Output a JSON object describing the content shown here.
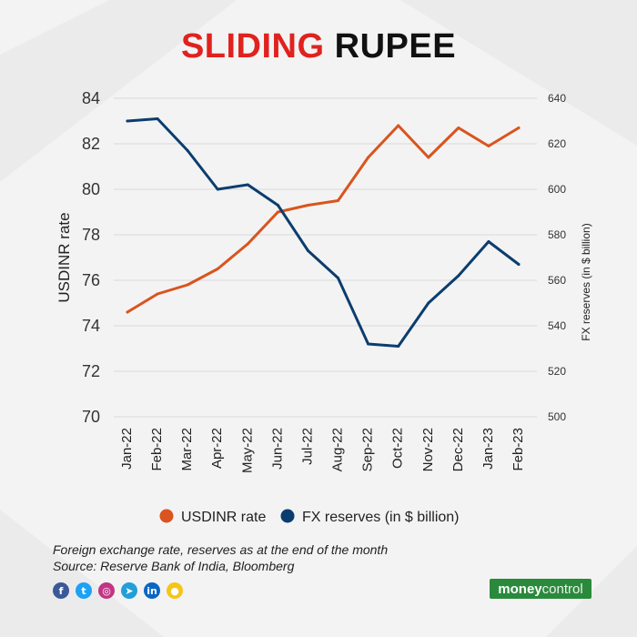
{
  "header": {
    "title_part1": "SLIDING",
    "title_part2": "RUPEE"
  },
  "chart_data": {
    "type": "line",
    "title": "SLIDING RUPEE",
    "categories": [
      "Jan-22",
      "Feb-22",
      "Mar-22",
      "Apr-22",
      "May-22",
      "Jun-22",
      "Jul-22",
      "Aug-22",
      "Sep-22",
      "Oct-22",
      "Nov-22",
      "Dec-22",
      "Jan-23",
      "Feb-23"
    ],
    "series": [
      {
        "name": "USDINR rate",
        "axis": "left",
        "color": "#d9541e",
        "values": [
          74.6,
          75.4,
          75.8,
          76.5,
          77.6,
          79.0,
          79.3,
          79.5,
          81.4,
          82.8,
          81.4,
          82.7,
          81.9,
          82.7
        ]
      },
      {
        "name": "FX reserves (in $ billion)",
        "axis": "right",
        "color": "#0b3d6e",
        "values": [
          630,
          631,
          617,
          600,
          602,
          593,
          573,
          561,
          532,
          531,
          550,
          562,
          577,
          567
        ]
      }
    ],
    "ylabel": "USDINR rate",
    "y2label": "FX reserves (in $ billion)",
    "ylim": [
      70,
      84
    ],
    "yticks": [
      "70",
      "72",
      "74",
      "76",
      "78",
      "80",
      "82",
      "84"
    ],
    "y2lim": [
      500,
      640
    ],
    "y2ticks": [
      "500",
      "520",
      "540",
      "560",
      "580",
      "600",
      "620",
      "640"
    ],
    "grid": true,
    "legend_position": "bottom"
  },
  "notes": {
    "line1": "Foreign exchange rate, reserves as at the end of the month",
    "line2": "Source: Reserve Bank of India, Bloomberg"
  },
  "brand": {
    "logo_part1": "money",
    "logo_part2": "control",
    "color": "#2a8a3c"
  },
  "social_icons": [
    {
      "name": "facebook-icon",
      "glyph": "f",
      "color": "#3b5998"
    },
    {
      "name": "twitter-icon",
      "glyph": "t",
      "color": "#1da1f2"
    },
    {
      "name": "instagram-icon",
      "glyph": "◎",
      "color": "#c13584"
    },
    {
      "name": "telegram-icon",
      "glyph": "➤",
      "color": "#229ed9"
    },
    {
      "name": "linkedin-icon",
      "glyph": "in",
      "color": "#0a66c2"
    },
    {
      "name": "koo-icon",
      "glyph": "●",
      "color": "#f5c518"
    }
  ]
}
